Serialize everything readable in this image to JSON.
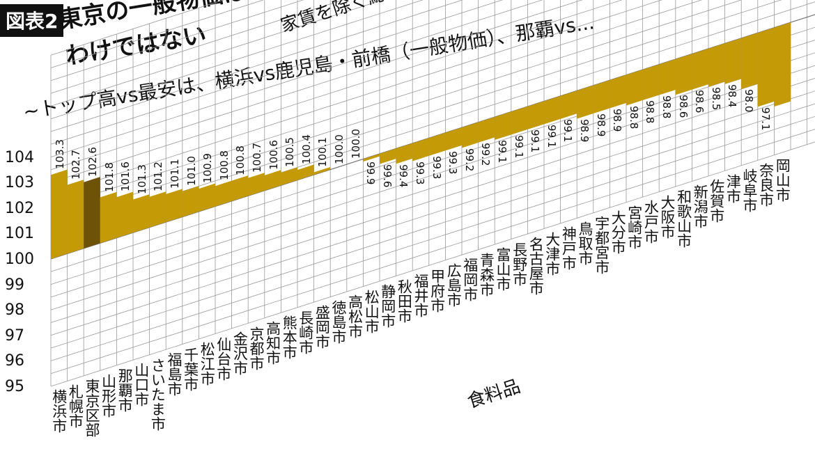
{
  "header": {
    "badge": "図表2",
    "title_line1": "東京の一般物価は",
    "title_line2": "わけではない",
    "subtitle": "~トップ高vs最安は、横浜vs鹿児島・前橋（一般物価）、那覇vs..."
  },
  "chart_data": {
    "type": "bar",
    "title": "家賃を除く総合（一般物価）",
    "next_section_title": "食料品",
    "baseline": 100,
    "ylim": [
      95,
      104.5
    ],
    "yticks": [
      95,
      96,
      97,
      98,
      99,
      100,
      101,
      102,
      103,
      104
    ],
    "grid": true,
    "categories": [
      "横浜市",
      "札幌市",
      "東京区部",
      "山形市",
      "那覇市",
      "山口市",
      "さいたま市",
      "福島市",
      "千葉市",
      "松江市",
      "仙台市",
      "金沢市",
      "京都市",
      "高知市",
      "熊本市",
      "長崎市",
      "盛岡市",
      "徳島市",
      "高松市",
      "松山市",
      "静岡市",
      "秋田市",
      "福井市",
      "甲府市",
      "広島市",
      "福岡市",
      "青森市",
      "富山市",
      "長野市",
      "名古屋市",
      "大津市",
      "神戸市",
      "鳥取市",
      "宇都宮市",
      "大分市",
      "宮崎市",
      "水戸市",
      "大阪市",
      "和歌山市",
      "新潟市",
      "佐賀市",
      "津市",
      "岐阜市",
      "奈良市",
      "岡山市"
    ],
    "values": [
      103.3,
      102.7,
      102.6,
      101.8,
      101.6,
      101.3,
      101.2,
      101.1,
      101.0,
      100.9,
      100.8,
      100.8,
      100.7,
      100.6,
      100.5,
      100.4,
      100.1,
      100.0,
      100.0,
      99.9,
      99.6,
      99.4,
      99.3,
      99.3,
      99.3,
      99.2,
      99.2,
      99.1,
      99.1,
      99.1,
      99.1,
      99.1,
      98.9,
      98.9,
      98.9,
      98.8,
      98.8,
      98.8,
      98.6,
      98.6,
      98.5,
      98.4,
      98.0,
      97.1,
      96.9
    ],
    "labels": [
      "103.3",
      "102.7",
      "102.6",
      "101.8",
      "101.6",
      "101.3",
      "101.2",
      "101.1",
      "101.0",
      "100.9",
      "100.8",
      "100.8",
      "100.7",
      "100.6",
      "100.5",
      "100.4",
      "100.1",
      "100.0",
      "100.0",
      "99.9",
      "99.6",
      "99.4",
      "99.3",
      "99.3",
      "99.3",
      "99.2",
      "99.2",
      "99.1",
      "99.1",
      "99.1",
      "99.1",
      "99.1",
      "98.9",
      "98.9",
      "98.9",
      "98.8",
      "98.8",
      "98.8",
      "98.6",
      "98.6",
      "98.5",
      "98.4",
      "98.0",
      "97.1",
      ""
    ],
    "highlight_index": 2,
    "colors": {
      "bar": "#C49A06",
      "highlight": "#6E5208",
      "grid": "#9A9A9A",
      "axis": "#111111"
    }
  }
}
